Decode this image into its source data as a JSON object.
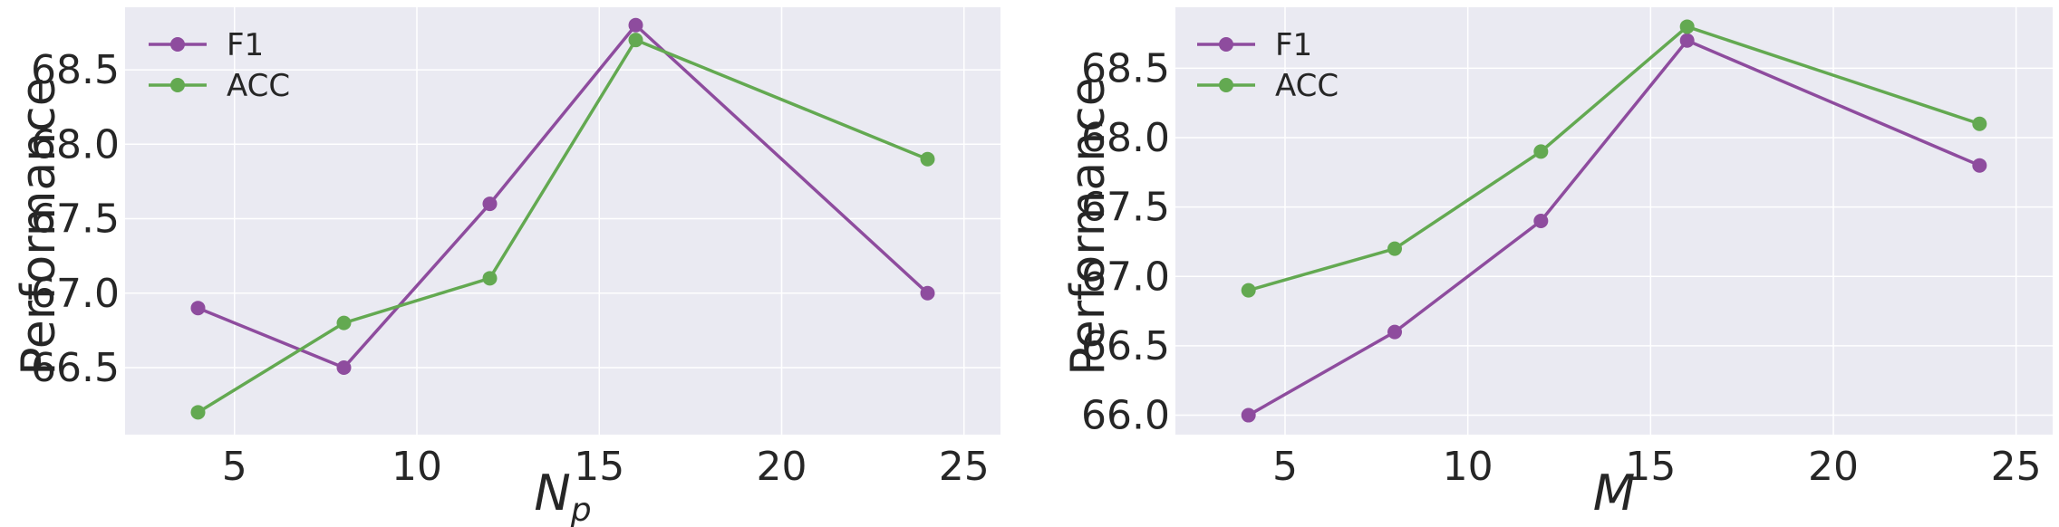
{
  "chart_data": [
    {
      "type": "line",
      "title": "",
      "xlabel": "N",
      "xlabel_sub": "p",
      "ylabel": "Performance",
      "x": [
        4,
        8,
        12,
        16,
        24
      ],
      "xlim": [
        2,
        26
      ],
      "ylim": [
        66.05,
        68.92
      ],
      "xticks": [
        "5",
        "10",
        "15",
        "20",
        "25"
      ],
      "yticks": [
        "66.5",
        "67.0",
        "67.5",
        "68.0",
        "68.5"
      ],
      "grid": true,
      "legend_position": "top-left",
      "series": [
        {
          "name": "F1",
          "color": "#8e4c9e",
          "values": [
            66.9,
            66.5,
            67.6,
            68.8,
            67.0
          ]
        },
        {
          "name": "ACC",
          "color": "#63a951",
          "values": [
            66.2,
            66.8,
            67.1,
            68.7,
            67.9
          ]
        }
      ]
    },
    {
      "type": "line",
      "title": "",
      "xlabel": "M",
      "xlabel_sub": "",
      "ylabel": "Performance",
      "x": [
        4,
        8,
        12,
        16,
        24
      ],
      "xlim": [
        2,
        26
      ],
      "ylim": [
        65.86,
        68.94
      ],
      "xticks": [
        "5",
        "10",
        "15",
        "20",
        "25"
      ],
      "yticks": [
        "66.0",
        "66.5",
        "67.0",
        "67.5",
        "68.0",
        "68.5"
      ],
      "grid": true,
      "legend_position": "top-left",
      "series": [
        {
          "name": "F1",
          "color": "#8e4c9e",
          "values": [
            66.0,
            66.6,
            67.4,
            68.7,
            67.8
          ]
        },
        {
          "name": "ACC",
          "color": "#63a951",
          "values": [
            66.9,
            67.2,
            67.9,
            68.8,
            68.1
          ]
        }
      ]
    }
  ]
}
